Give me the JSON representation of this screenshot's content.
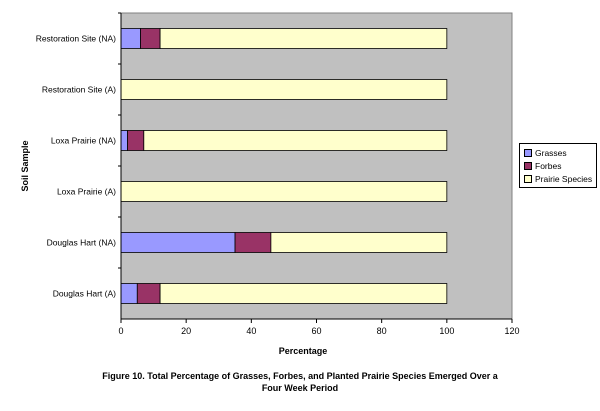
{
  "chart_data": {
    "type": "bar",
    "orientation": "horizontal",
    "stacked": true,
    "categories": [
      "Restoration Site (NA)",
      "Restoration Site (A)",
      "Loxa Prairie (NA)",
      "Loxa Prairie (A)",
      "Douglas Hart (NA)",
      "Douglas Hart (A)"
    ],
    "series": [
      {
        "name": "Grasses",
        "color": "#9999ff",
        "values": [
          6,
          0,
          2,
          0,
          35,
          5
        ]
      },
      {
        "name": "Forbes",
        "color": "#993366",
        "values": [
          6,
          0,
          5,
          0,
          11,
          7
        ]
      },
      {
        "name": "Prairie Species",
        "color": "#ffffcc",
        "values": [
          88,
          100,
          93,
          100,
          54,
          88
        ]
      }
    ],
    "xlabel": "Percentage",
    "ylabel": "Soil Sample",
    "xlim": [
      0,
      120
    ],
    "xticks": [
      "0",
      "20",
      "40",
      "60",
      "80",
      "100",
      "120"
    ],
    "legend_position": "right",
    "grid": false,
    "plot_background": "#c0c0c0"
  },
  "caption": {
    "line1": "Figure 10.  Total Percentage of Grasses, Forbes, and Planted Prairie Species Emerged Over a",
    "line2": "Four Week Period"
  }
}
